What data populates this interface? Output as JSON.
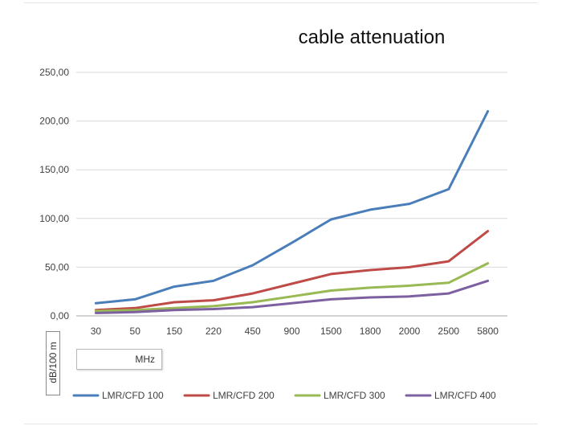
{
  "chart_data": {
    "type": "line",
    "title": "cable attenuation",
    "xlabel": "MHz",
    "ylabel": "dB/100 m",
    "ylim": [
      0,
      250
    ],
    "ytick_values": [
      0,
      50,
      100,
      150,
      200,
      250
    ],
    "ytick_labels": [
      "0,00",
      "50,00",
      "100,00",
      "150,00",
      "200,00",
      "250,00"
    ],
    "grid": true,
    "legend": "bottom",
    "categories": [
      "30",
      "50",
      "150",
      "220",
      "450",
      "900",
      "1500",
      "1800",
      "2000",
      "2500",
      "5800"
    ],
    "series": [
      {
        "name": "LMR/CFD 100",
        "color": "#4a7ebb",
        "values": [
          13,
          17,
          30,
          36,
          52,
          75,
          99,
          109,
          115,
          130,
          210
        ]
      },
      {
        "name": "LMR/CFD 200",
        "color": "#be4b48",
        "values": [
          6,
          8,
          14,
          16,
          23,
          33,
          43,
          47,
          50,
          56,
          87
        ]
      },
      {
        "name": "LMR/CFD 300",
        "color": "#98b954",
        "values": [
          5,
          6,
          8,
          10,
          14,
          20,
          26,
          29,
          31,
          34,
          54
        ]
      },
      {
        "name": "LMR/CFD 400",
        "color": "#7d60a0",
        "values": [
          3,
          4,
          6,
          7,
          9,
          13,
          17,
          19,
          20,
          23,
          36
        ]
      }
    ]
  }
}
